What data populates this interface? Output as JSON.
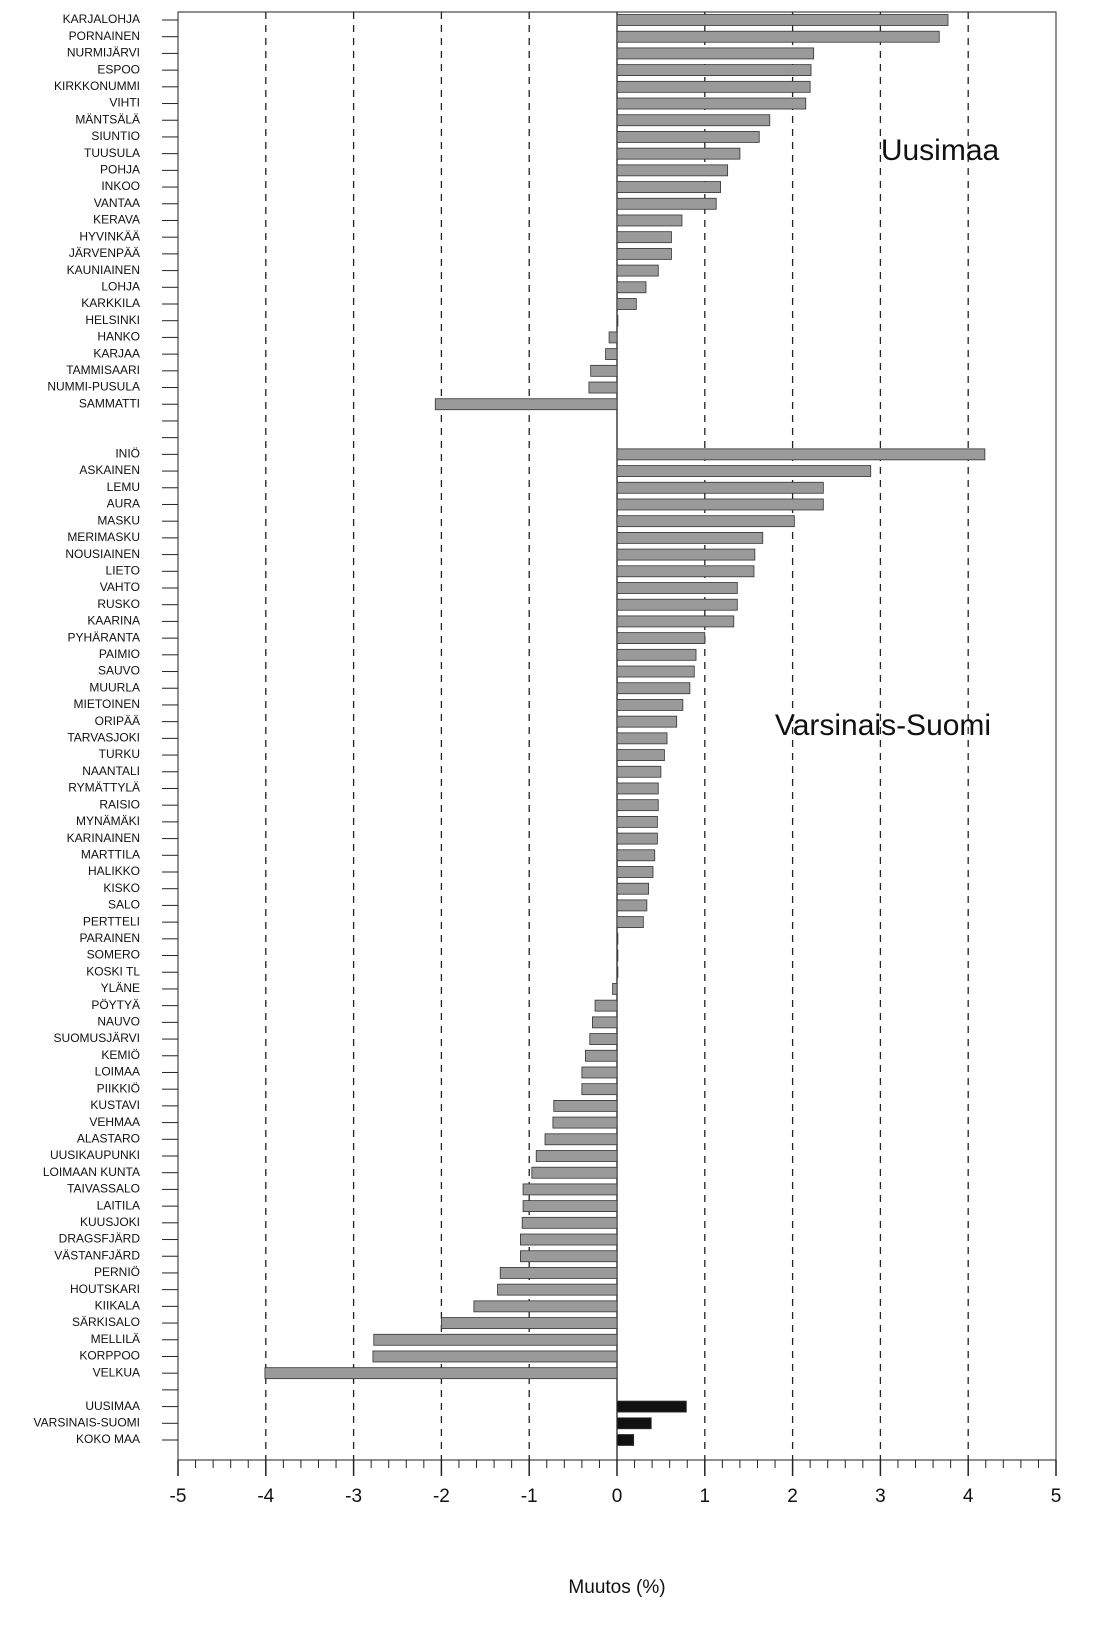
{
  "chart_data": {
    "type": "barh",
    "xlabel": "Muutos (%)",
    "annotations": [
      "Uusimaa",
      "Varsinais-Suomi"
    ],
    "categories": [
      "KARJALOHJA",
      "PORNAINEN",
      "NURMIJÄRVI",
      "ESPOO",
      "KIRKKONUMMI",
      "VIHTI",
      "MÄNTSÄLÄ",
      "SIUNTIO",
      "TUUSULA",
      "POHJA",
      "INKOO",
      "VANTAA",
      "KERAVA",
      "HYVINKÄÄ",
      "JÄRVENPÄÄ",
      "KAUNIAINEN",
      "LOHJA",
      "KARKKILA",
      "HELSINKI",
      "HANKO",
      "KARJAA",
      "TAMMISAARI",
      "NUMMI-PUSULA",
      "SAMMATTI",
      null,
      null,
      "INIÖ",
      "ASKAINEN",
      "LEMU",
      "AURA",
      "MASKU",
      "MERIMASKU",
      "NOUSIAINEN",
      "LIETO",
      "VAHTO",
      "RUSKO",
      "KAARINA",
      "PYHÄRANTA",
      "PAIMIO",
      "SAUVO",
      "MUURLA",
      "MIETOINEN",
      "ORIPÄÄ",
      "TARVASJOKI",
      "TURKU",
      "NAANTALI",
      "RYMÄTTYLÄ",
      "RAISIO",
      "MYNÄMÄKI",
      "KARINAINEN",
      "MARTTILA",
      "HALIKKO",
      "KISKO",
      "SALO",
      "PERTTELI",
      "PARAINEN",
      "SOMERO",
      "KOSKI TL",
      "YLÄNE",
      "PÖYTYÄ",
      "NAUVO",
      "SUOMUSJÄRVI",
      "KEMIÖ",
      "LOIMAA",
      "PIIKKIÖ",
      "KUSTAVI",
      "VEHMAA",
      "ALASTARO",
      "UUSIKAUPUNKI",
      "LOIMAAN KUNTA",
      "TAIVASSALO",
      "LAITILA",
      "KUUSJOKI",
      "DRAGSFJÄRD",
      "VÄSTANFJÄRD",
      "PERNIÖ",
      "HOUTSKARI",
      "KIIKALA",
      "SÄRKISALO",
      "MELLILÄ",
      "KORPPOO",
      "VELKUA",
      null,
      "UUSIMAA",
      "VARSINAIS-SUOMI",
      "KOKO MAA"
    ],
    "series": [
      {
        "color": "#9a9a9a",
        "values": [
          3.77,
          3.67,
          2.24,
          2.21,
          2.2,
          2.15,
          1.74,
          1.62,
          1.4,
          1.26,
          1.18,
          1.13,
          0.74,
          0.62,
          0.62,
          0.47,
          0.33,
          0.22,
          0.01,
          -0.09,
          -0.13,
          -0.3,
          -0.32,
          -2.07,
          null,
          null,
          4.19,
          2.89,
          2.35,
          2.35,
          2.02,
          1.66,
          1.57,
          1.56,
          1.37,
          1.37,
          1.33,
          1.0,
          0.9,
          0.88,
          0.83,
          0.75,
          0.68,
          0.57,
          0.54,
          0.5,
          0.47,
          0.47,
          0.46,
          0.46,
          0.43,
          0.41,
          0.36,
          0.34,
          0.3,
          0.01,
          0.01,
          0.01,
          -0.05,
          -0.25,
          -0.28,
          -0.31,
          -0.36,
          -0.4,
          -0.4,
          -0.72,
          -0.73,
          -0.82,
          -0.92,
          -0.97,
          -1.07,
          -1.07,
          -1.08,
          -1.1,
          -1.1,
          -1.33,
          -1.36,
          -1.63,
          -2.0,
          -2.77,
          -2.78,
          -4.01,
          null,
          null,
          null,
          null
        ]
      },
      {
        "color": "#111111",
        "values": [
          null,
          null,
          null,
          null,
          null,
          null,
          null,
          null,
          null,
          null,
          null,
          null,
          null,
          null,
          null,
          null,
          null,
          null,
          null,
          null,
          null,
          null,
          null,
          null,
          null,
          null,
          null,
          null,
          null,
          null,
          null,
          null,
          null,
          null,
          null,
          null,
          null,
          null,
          null,
          null,
          null,
          null,
          null,
          null,
          null,
          null,
          null,
          null,
          null,
          null,
          null,
          null,
          null,
          null,
          null,
          null,
          null,
          null,
          null,
          null,
          null,
          null,
          null,
          null,
          null,
          null,
          null,
          null,
          null,
          null,
          null,
          null,
          null,
          null,
          null,
          null,
          null,
          null,
          null,
          null,
          null,
          null,
          null,
          0.79,
          0.39,
          0.19
        ]
      }
    ],
    "xlim": [
      -5,
      5
    ],
    "xticks": [
      -5,
      -4,
      -3,
      -2,
      -1,
      0,
      1,
      2,
      3,
      4,
      5
    ],
    "grid": true
  }
}
